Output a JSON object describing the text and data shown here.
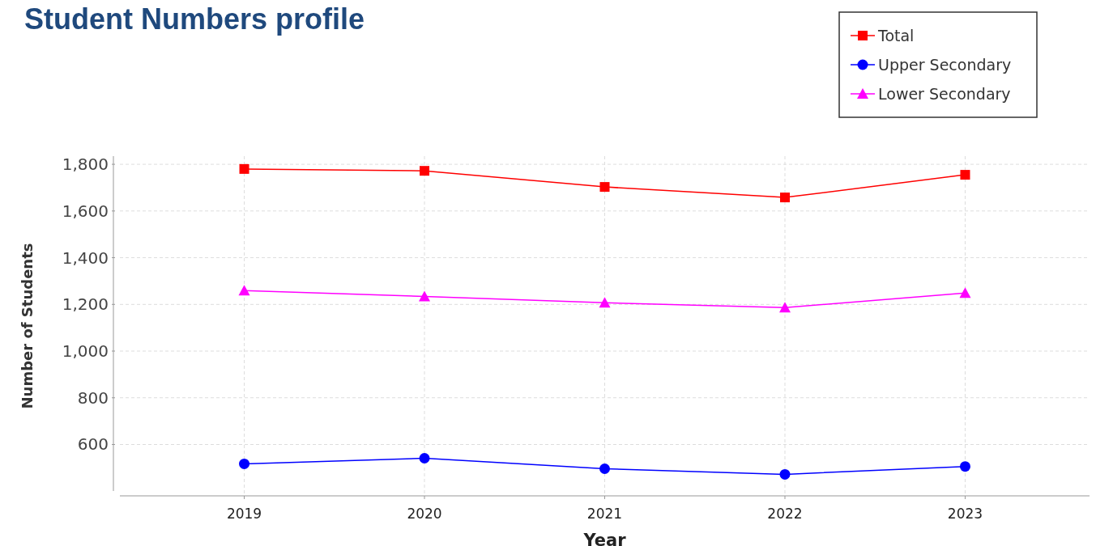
{
  "chart_data": {
    "type": "line",
    "title": "Student Numbers profile",
    "xlabel": "Year",
    "ylabel": "Number of Students",
    "categories": [
      "2019",
      "2020",
      "2021",
      "2022",
      "2023"
    ],
    "series": [
      {
        "name": "Total",
        "color": "#ff0000",
        "marker": "square",
        "values": [
          1780,
          1772,
          1703,
          1658,
          1755
        ]
      },
      {
        "name": "Upper Secondary",
        "color": "#0000ff",
        "marker": "circle",
        "values": [
          517,
          541,
          496,
          472,
          506
        ]
      },
      {
        "name": "Lower Secondary",
        "color": "#ff00ff",
        "marker": "triangle",
        "values": [
          1259,
          1234,
          1207,
          1186,
          1249
        ]
      }
    ],
    "ylim": [
      380,
      1835
    ],
    "yticks": [
      {
        "value": 600,
        "label": "600"
      },
      {
        "value": 800,
        "label": "800"
      },
      {
        "value": 1000,
        "label": "1,000"
      },
      {
        "value": 1200,
        "label": "1,200"
      },
      {
        "value": 1400,
        "label": "1,400"
      },
      {
        "value": 1600,
        "label": "1,600"
      },
      {
        "value": 1800,
        "label": "1,800"
      }
    ],
    "grid": true,
    "legend": "top right",
    "line_style": "solid"
  }
}
